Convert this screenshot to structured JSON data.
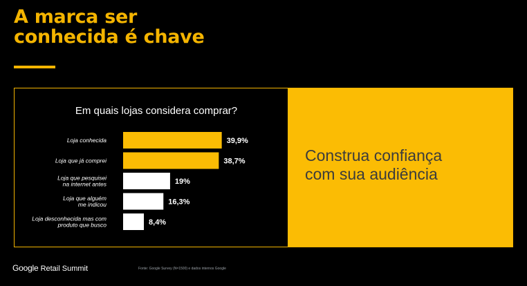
{
  "slide": {
    "title_line1": "A marca ser",
    "title_line2": "conhecida é chave",
    "callout_line1": "Construa confiança",
    "callout_line2": "com sua audiência"
  },
  "colors": {
    "accent": "#f4b400",
    "panel": "#fbbc04",
    "bar_highlight": "#fbbc04",
    "bar_default": "#ffffff"
  },
  "footer": {
    "brand_google": "Google",
    "brand_event": "Retail Summit",
    "source": "Fonte: Google Survey (N=1500) e dados internos Google"
  },
  "chart_data": {
    "type": "bar",
    "orientation": "horizontal",
    "title": "Em quais lojas considera comprar?",
    "categories": [
      [
        "Loja conhecida"
      ],
      [
        "Loja que já comprei"
      ],
      [
        "Loja que pesquisei",
        "na internet antes"
      ],
      [
        "Loja que alguém",
        "me indicou"
      ],
      [
        "Loja desconhecida mas com",
        "produto que busco"
      ]
    ],
    "values": [
      39.9,
      38.7,
      19,
      16.3,
      8.4
    ],
    "value_labels": [
      "39,9%",
      "38,7%",
      "19%",
      "16,3%",
      "8,4%"
    ],
    "highlighted": [
      true,
      true,
      false,
      false,
      false
    ],
    "unit": "%",
    "xlim": [
      0,
      40
    ]
  }
}
